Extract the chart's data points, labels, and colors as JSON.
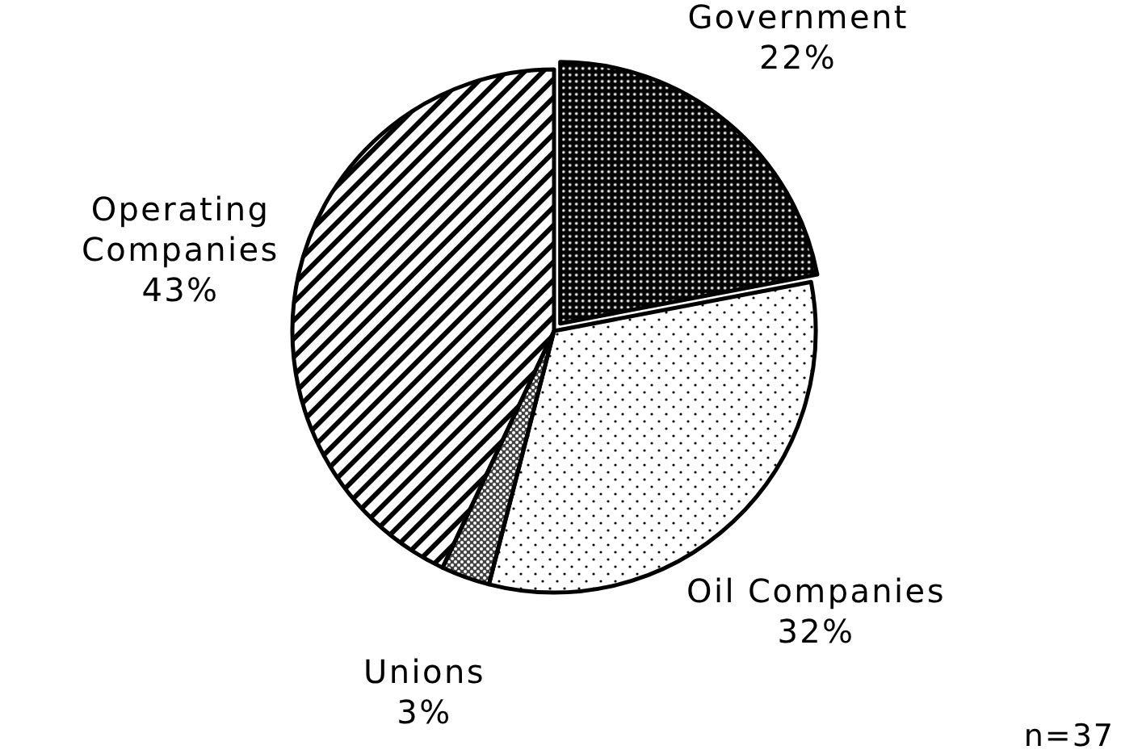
{
  "chart_data": {
    "type": "pie",
    "categories": [
      "Government",
      "Oil Companies",
      "Unions",
      "Operating Companies"
    ],
    "values": [
      22,
      32,
      3,
      43
    ],
    "colors": [
      "#000000",
      "#ffffff",
      "#404040",
      "#ffffff"
    ],
    "value_labels": [
      "22%",
      "32%",
      "3%",
      "43%"
    ],
    "annotations": [
      "n=37"
    ]
  }
}
